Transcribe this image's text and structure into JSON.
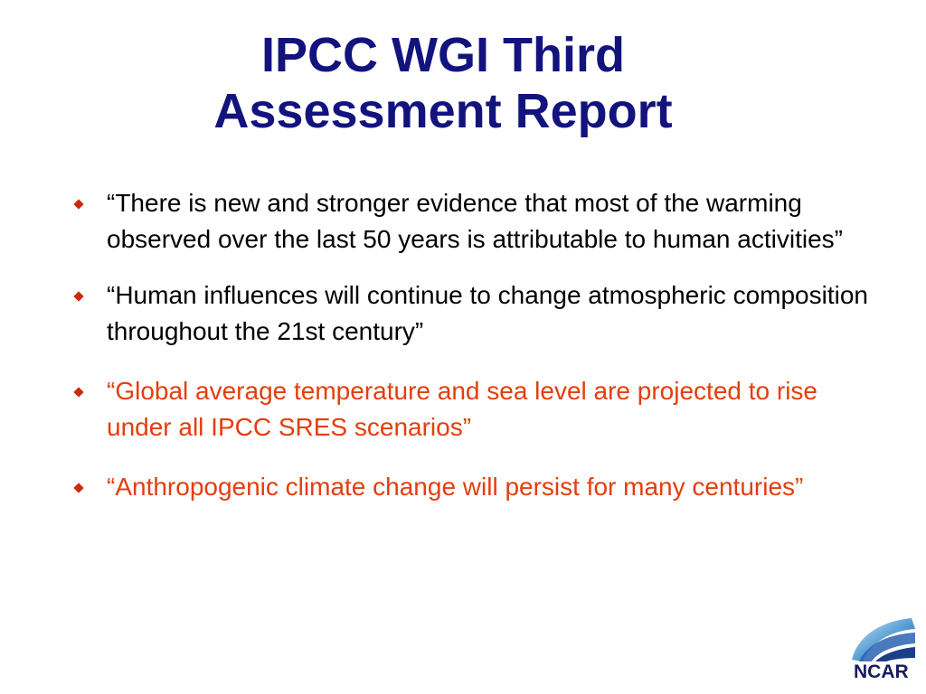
{
  "title": {
    "line1": "IPCC WGI Third",
    "line2": "Assessment Report"
  },
  "bullets": [
    {
      "text": "“There is new and stronger evidence that most of the warming observed over the last 50 years is attributable to human activities”",
      "color": "#000000"
    },
    {
      "text": "“Human influences will continue to change atmospheric composition throughout the 21st century”",
      "color": "#000000"
    },
    {
      "text": "“Global average temperature and sea level are projected to rise under all IPCC SRES scenarios”",
      "color": "#e53d0c"
    },
    {
      "text": "“Anthropogenic climate change will persist for many centuries”",
      "color": "#e53d0c"
    }
  ],
  "logo": {
    "text": "NCAR",
    "icon": "ncar-swoosh-icon"
  },
  "colors": {
    "title": "#13137e",
    "highlight": "#e53d0c",
    "bullet_marker": "#cc2a0a"
  }
}
